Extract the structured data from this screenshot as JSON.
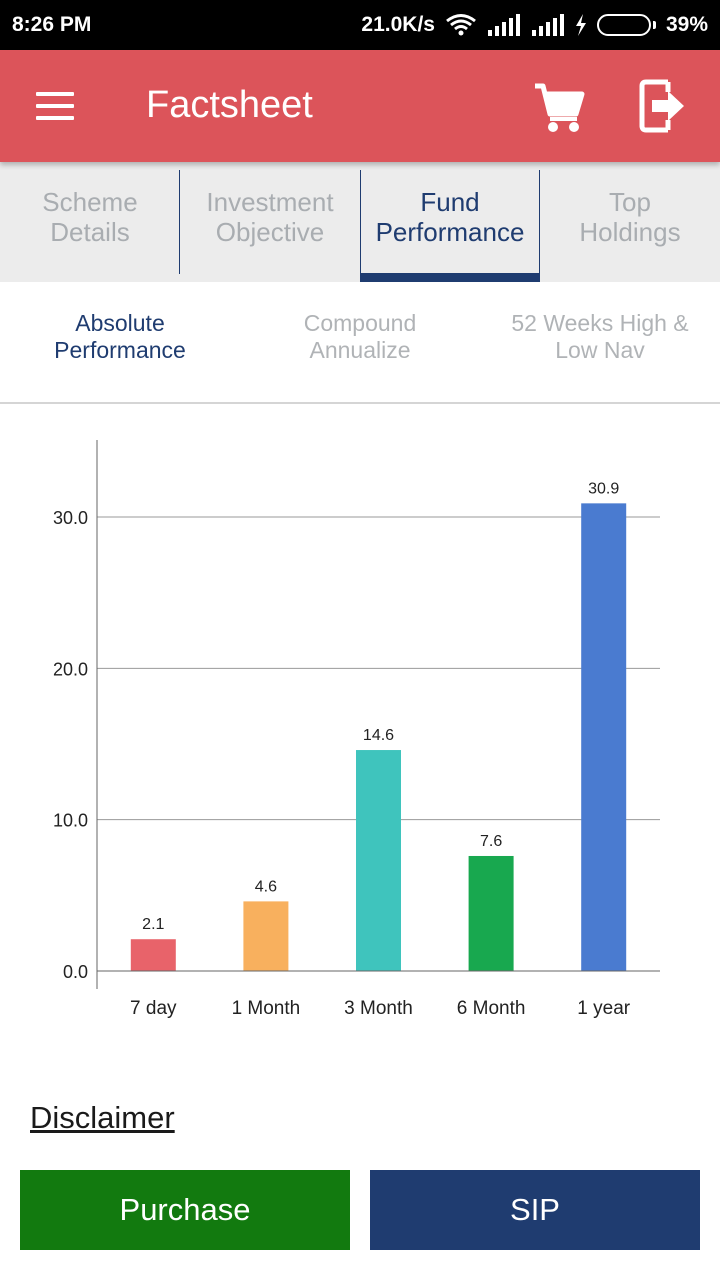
{
  "status_bar": {
    "time": "8:26 PM",
    "network_speed": "21.0K/s",
    "battery": "39%",
    "battery_level": 0.39,
    "icons": [
      "wifi-icon",
      "signal-icon",
      "signal-icon",
      "charging-icon",
      "battery-icon"
    ]
  },
  "app_bar": {
    "title": "Factsheet",
    "icons": [
      "menu-icon",
      "cart-icon",
      "logout-icon"
    ]
  },
  "tabs": [
    {
      "line1": "Scheme",
      "line2": "Details",
      "active": false
    },
    {
      "line1": "Investment",
      "line2": "Objective",
      "active": false
    },
    {
      "line1": "Fund",
      "line2": "Performance",
      "active": true
    },
    {
      "line1": "Top",
      "line2": "Holdings",
      "active": false
    }
  ],
  "sub_tabs": [
    {
      "line1": "Absolute",
      "line2": "Performance",
      "active": true
    },
    {
      "line1": "Compound",
      "line2": "Annualize",
      "active": false
    },
    {
      "line1": "52 Weeks High &",
      "line2": "Low Nav",
      "active": false
    }
  ],
  "chart_data": {
    "type": "bar",
    "categories": [
      "7 day",
      "1 Month",
      "3 Month",
      "6 Month",
      "1 year"
    ],
    "values": [
      2.1,
      4.6,
      14.6,
      7.6,
      30.9
    ],
    "data_labels": [
      "2.1",
      "4.6",
      "14.6",
      "7.6",
      "30.9"
    ],
    "colors": [
      "#e8636a",
      "#f8b05e",
      "#3fc4bd",
      "#18a84f",
      "#4a7bd0"
    ],
    "yticks": [
      0,
      10,
      20,
      30
    ],
    "ytick_labels": [
      "0.0",
      "10.0",
      "20.0",
      "30.0"
    ],
    "ylim": [
      0,
      33.5
    ],
    "grid": true,
    "title": "",
    "xlabel": "",
    "ylabel": ""
  },
  "disclaimer": "Disclaimer",
  "buttons": {
    "purchase": "Purchase",
    "sip": "SIP"
  }
}
